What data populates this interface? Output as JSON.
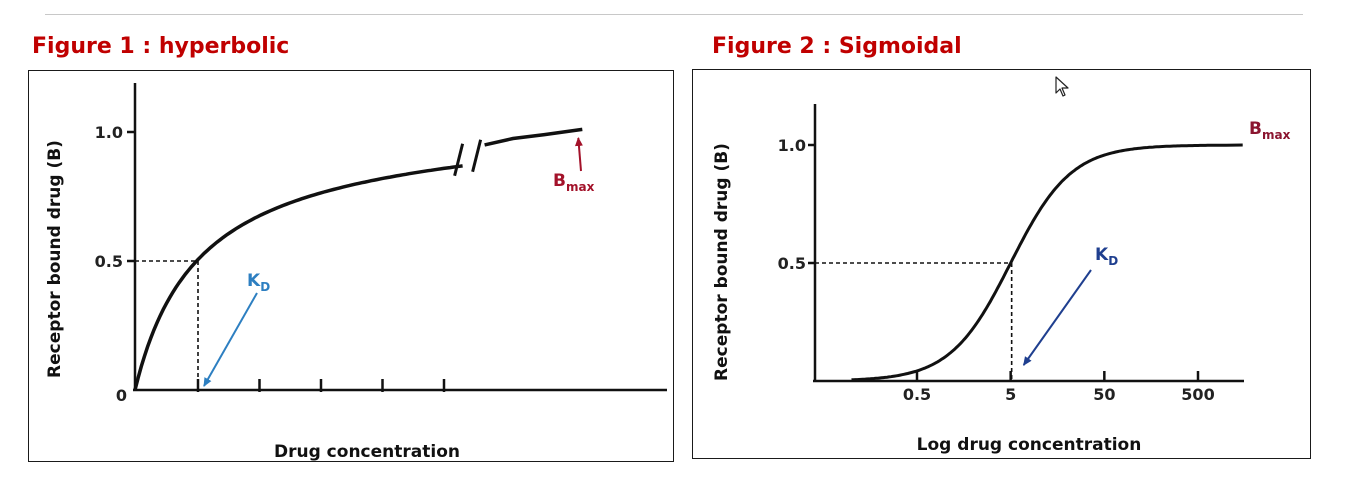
{
  "figure1": {
    "title": "Figure 1 : hyperbolic",
    "xlabel": "Drug concentration",
    "ylabel": "Receptor bound drug (B)",
    "bmax_label_main": "B",
    "bmax_label_sub": "max",
    "kd_label_main": "K",
    "kd_label_sub": "D",
    "colors": {
      "curve": "#111111",
      "bmax": "#a3122a",
      "kd": "#2d7fc1"
    }
  },
  "figure2": {
    "title": "Figure 2 : Sigmoidal",
    "xlabel": "Log drug concentration",
    "ylabel": "Receptor bound drug (B)",
    "bmax_label_main": "B",
    "bmax_label_sub": "max",
    "kd_label_main": "K",
    "kd_label_sub": "D",
    "colors": {
      "curve": "#111111",
      "bmax": "#8b1530",
      "kd": "#1f3f8f"
    }
  },
  "chart_data": [
    {
      "type": "line",
      "title": "Figure 1 : hyperbolic",
      "xlabel": "Drug concentration",
      "ylabel": "Receptor bound drug (B)",
      "ylim": [
        0,
        1.2
      ],
      "xlim": [
        0,
        7.5
      ],
      "y_ticks": [
        {
          "value": 0,
          "label": "0"
        },
        {
          "value": 0.5,
          "label": "0.5"
        },
        {
          "value": 1.0,
          "label": "1.0"
        }
      ],
      "x_ticks": [
        1,
        2,
        3,
        4,
        5
      ],
      "axis_break_x": 5.2,
      "kd": 1,
      "bmax": 1.0,
      "series": [
        {
          "x": [
            0,
            0.1,
            0.25,
            0.5,
            0.75,
            1,
            1.5,
            2,
            2.5,
            3,
            3.5,
            4,
            4.5,
            5,
            5.5,
            6,
            6.5,
            7
          ],
          "y": [
            0,
            0.09,
            0.2,
            0.33,
            0.43,
            0.5,
            0.6,
            0.67,
            0.71,
            0.75,
            0.78,
            0.8,
            0.83,
            0.86,
            0.95,
            0.98,
            0.995,
            1.0
          ]
        }
      ],
      "annotations": [
        {
          "text": "B_max",
          "points_to": [
            7,
            1.0
          ]
        },
        {
          "text": "K_D",
          "points_to": [
            1,
            0
          ]
        }
      ],
      "grid": false
    },
    {
      "type": "line",
      "title": "Figure 2 : Sigmoidal",
      "xlabel": "Log drug concentration",
      "ylabel": "Receptor bound drug (B)",
      "x_scale": "log",
      "xlim": [
        0.05,
        5000
      ],
      "ylim": [
        0,
        1.2
      ],
      "x_ticks": [
        {
          "value": 0.5,
          "label": "0.5"
        },
        {
          "value": 5,
          "label": "5"
        },
        {
          "value": 50,
          "label": "50"
        },
        {
          "value": 500,
          "label": "500"
        }
      ],
      "y_ticks": [
        {
          "value": 0.5,
          "label": "0.5"
        },
        {
          "value": 1.0,
          "label": "1.0"
        }
      ],
      "kd": 5,
      "bmax": 1.0,
      "series": [
        {
          "x": [
            0.1,
            0.2,
            0.5,
            1,
            2,
            3,
            5,
            8,
            12,
            20,
            50,
            100,
            200,
            500,
            1000
          ],
          "y": [
            0.02,
            0.04,
            0.09,
            0.17,
            0.29,
            0.38,
            0.5,
            0.62,
            0.71,
            0.8,
            0.91,
            0.95,
            0.98,
            0.99,
            1.0
          ]
        }
      ],
      "annotations": [
        {
          "text": "B_max",
          "points_to": [
            1000,
            1.0
          ]
        },
        {
          "text": "K_D",
          "points_to": [
            5,
            0
          ]
        }
      ],
      "grid": false
    }
  ]
}
